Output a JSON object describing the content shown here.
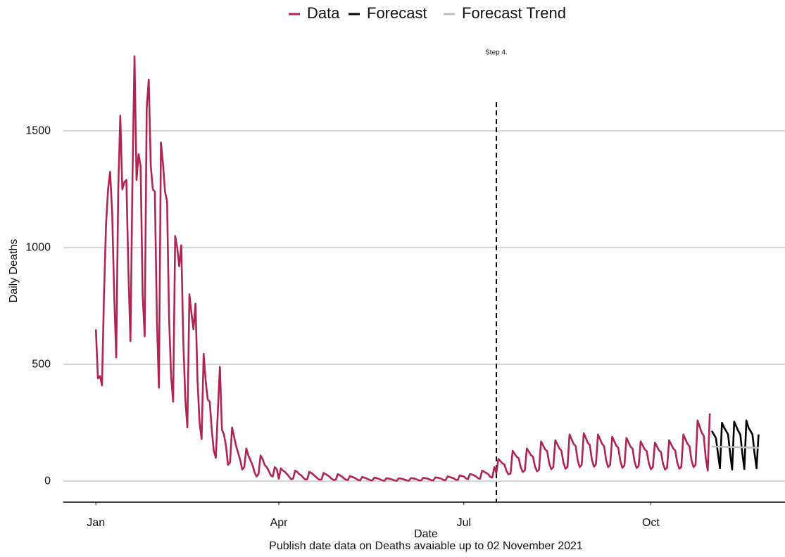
{
  "chart_data": {
    "type": "line",
    "x_label": "Date",
    "y_label": "Daily Deaths",
    "caption": "Publish date data on Deaths avaiable up to 02 November 2021",
    "xlim": [
      -15,
      340
    ],
    "xticks": [
      {
        "value": 1,
        "label": "Jan"
      },
      {
        "value": 91,
        "label": "Apr"
      },
      {
        "value": 182,
        "label": "Jul"
      },
      {
        "value": 274,
        "label": "Oct"
      }
    ],
    "ylim": [
      -90,
      1910
    ],
    "yticks": [
      0,
      500,
      1000,
      1500
    ],
    "grid": true,
    "legend": "top",
    "vline": {
      "x": 198,
      "label": "Step 4."
    },
    "series": [
      {
        "name": "Data",
        "color": "#b0244f",
        "x": [
          1,
          2,
          3,
          4,
          5,
          6,
          7,
          8,
          9,
          10,
          11,
          12,
          13,
          14,
          15,
          16,
          17,
          18,
          19,
          20,
          21,
          22,
          23,
          24,
          25,
          26,
          27,
          28,
          29,
          30,
          31,
          32,
          33,
          34,
          35,
          36,
          37,
          38,
          39,
          40,
          41,
          42,
          43,
          44,
          45,
          46,
          47,
          48,
          49,
          50,
          51,
          52,
          53,
          54,
          55,
          56,
          57,
          58,
          59,
          60,
          61,
          62,
          63,
          64,
          65,
          66,
          67,
          68,
          69,
          70,
          71,
          72,
          73,
          74,
          75,
          76,
          77,
          78,
          79,
          80,
          81,
          82,
          83,
          84,
          85,
          86,
          87,
          88,
          89,
          90,
          91,
          92,
          93,
          94,
          95,
          96,
          97,
          98,
          99,
          100,
          101,
          102,
          103,
          104,
          105,
          106,
          107,
          108,
          109,
          110,
          111,
          112,
          113,
          114,
          115,
          116,
          117,
          118,
          119,
          120,
          121,
          122,
          123,
          124,
          125,
          126,
          127,
          128,
          129,
          130,
          131,
          132,
          133,
          134,
          135,
          136,
          137,
          138,
          139,
          140,
          141,
          142,
          143,
          144,
          145,
          146,
          147,
          148,
          149,
          150,
          151,
          152,
          153,
          154,
          155,
          156,
          157,
          158,
          159,
          160,
          161,
          162,
          163,
          164,
          165,
          166,
          167,
          168,
          169,
          170,
          171,
          172,
          173,
          174,
          175,
          176,
          177,
          178,
          179,
          180,
          181,
          182,
          183,
          184,
          185,
          186,
          187,
          188,
          189,
          190,
          191,
          192,
          193,
          194,
          195,
          196,
          197,
          198,
          199,
          200,
          201,
          202,
          203,
          204,
          205,
          206,
          207,
          208,
          209,
          210,
          211,
          212,
          213,
          214,
          215,
          216,
          217,
          218,
          219,
          220,
          221,
          222,
          223,
          224,
          225,
          226,
          227,
          228,
          229,
          230,
          231,
          232,
          233,
          234,
          235,
          236,
          237,
          238,
          239,
          240,
          241,
          242,
          243,
          244,
          245,
          246,
          247,
          248,
          249,
          250,
          251,
          252,
          253,
          254,
          255,
          256,
          257,
          258,
          259,
          260,
          261,
          262,
          263,
          264,
          265,
          266,
          267,
          268,
          269,
          270,
          271,
          272,
          273,
          274,
          275,
          276,
          277,
          278,
          279,
          280,
          281,
          282,
          283,
          284,
          285,
          286,
          287,
          288,
          289,
          290,
          291,
          292,
          293,
          294,
          295,
          296,
          297,
          298,
          299,
          300,
          301,
          302,
          303
        ],
        "values": [
          650,
          440,
          450,
          410,
          800,
          1100,
          1250,
          1325,
          1150,
          800,
          530,
          1250,
          1565,
          1250,
          1280,
          1290,
          900,
          600,
          1300,
          1820,
          1290,
          1400,
          1350,
          800,
          620,
          1600,
          1720,
          1350,
          1250,
          1240,
          700,
          400,
          1450,
          1360,
          1240,
          1200,
          700,
          450,
          340,
          1050,
          1000,
          920,
          1010,
          600,
          350,
          230,
          800,
          720,
          650,
          760,
          430,
          250,
          180,
          545,
          430,
          350,
          340,
          220,
          130,
          100,
          300,
          490,
          220,
          200,
          150,
          70,
          80,
          230,
          190,
          150,
          120,
          90,
          50,
          60,
          140,
          110,
          90,
          70,
          40,
          20,
          30,
          110,
          95,
          70,
          60,
          45,
          25,
          20,
          60,
          50,
          10,
          55,
          45,
          40,
          30,
          20,
          8,
          10,
          45,
          40,
          30,
          25,
          15,
          7,
          8,
          40,
          35,
          28,
          20,
          12,
          6,
          7,
          35,
          30,
          25,
          18,
          10,
          5,
          6,
          30,
          25,
          20,
          12,
          6,
          5,
          22,
          18,
          15,
          10,
          5,
          3,
          18,
          15,
          12,
          8,
          4,
          3,
          15,
          13,
          10,
          7,
          3,
          2,
          13,
          11,
          9,
          6,
          3,
          2,
          12,
          11,
          9,
          6,
          3,
          2,
          13,
          12,
          10,
          7,
          3,
          3,
          14,
          13,
          11,
          8,
          4,
          3,
          16,
          15,
          13,
          10,
          5,
          4,
          20,
          18,
          15,
          12,
          6,
          5,
          25,
          22,
          20,
          12,
          8,
          30,
          28,
          25,
          20,
          12,
          10,
          45,
          40,
          35,
          30,
          18,
          15,
          60,
          35,
          95,
          86,
          76,
          71,
          43,
          29,
          33,
          130,
          117,
          104,
          98,
          59,
          39,
          46,
          140,
          126,
          112,
          105,
          63,
          42,
          49,
          170,
          153,
          136,
          128,
          77,
          51,
          60,
          175,
          158,
          140,
          131,
          79,
          53,
          61,
          200,
          180,
          160,
          150,
          90,
          60,
          70,
          205,
          185,
          164,
          154,
          92,
          62,
          72,
          200,
          180,
          160,
          150,
          90,
          60,
          70,
          190,
          171,
          152,
          143,
          86,
          57,
          67,
          185,
          167,
          148,
          139,
          83,
          56,
          65,
          170,
          153,
          136,
          128,
          77,
          51,
          60,
          165,
          149,
          132,
          124,
          74,
          50,
          58,
          175,
          158,
          140,
          131,
          79,
          53,
          61,
          200,
          180,
          160,
          150,
          90,
          60,
          70,
          260,
          234,
          208,
          195,
          100,
          45,
          290
        ]
      },
      {
        "name": "Forecast",
        "color": "#000000",
        "x": [
          304,
          305,
          306,
          307,
          308,
          309,
          310,
          311,
          312,
          313,
          314,
          315,
          316,
          317,
          318,
          319,
          320,
          321,
          322,
          323,
          324,
          325,
          326,
          327
        ],
        "values": [
          215,
          200,
          185,
          120,
          55,
          250,
          230,
          215,
          200,
          120,
          50,
          255,
          235,
          215,
          200,
          120,
          52,
          260,
          230,
          215,
          200,
          120,
          55,
          200
        ]
      },
      {
        "name": "Forecast Trend",
        "color": "#bdbdbd",
        "x": [
          304,
          327
        ],
        "values": [
          148,
          143
        ]
      }
    ]
  }
}
